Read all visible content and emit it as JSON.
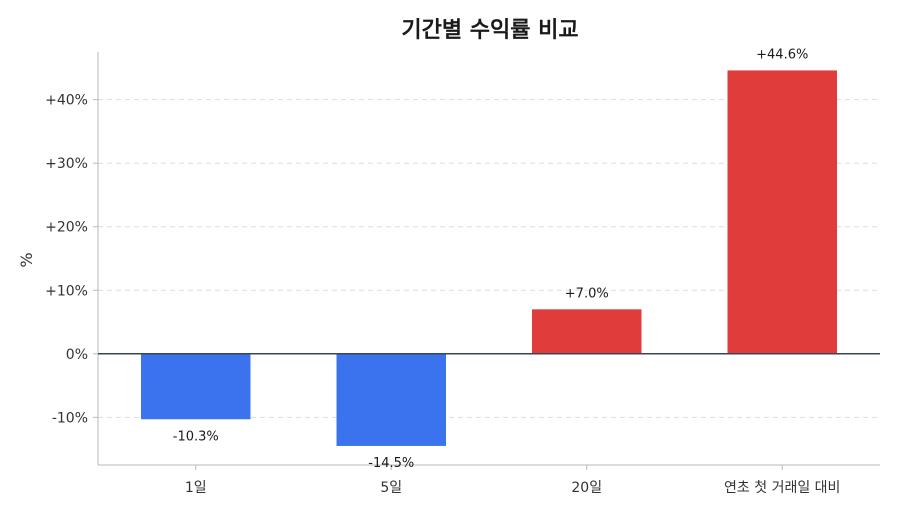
{
  "chart_data": {
    "type": "bar",
    "title": "기간별 수익률 비교",
    "ylabel": "%",
    "xlabel": "",
    "categories": [
      "1일",
      "5일",
      "20일",
      "연초 첫 거래일 대비"
    ],
    "values": [
      -10.3,
      -14.5,
      7.0,
      44.6
    ],
    "data_labels": [
      "-10.3%",
      "-14.5%",
      "+7.0%",
      "+44.6%"
    ],
    "yticks": [
      -10,
      0,
      10,
      20,
      30,
      40
    ],
    "ytick_labels": [
      "-10%",
      "0%",
      "+10%",
      "+20%",
      "+30%",
      "+40%"
    ],
    "ylim": [
      -17.5,
      47.5
    ],
    "grid": true,
    "colors": {
      "positive": "#e03c3c",
      "negative": "#3b73ef",
      "zero_line": "#37474f",
      "grid": "#d9dde3"
    }
  }
}
